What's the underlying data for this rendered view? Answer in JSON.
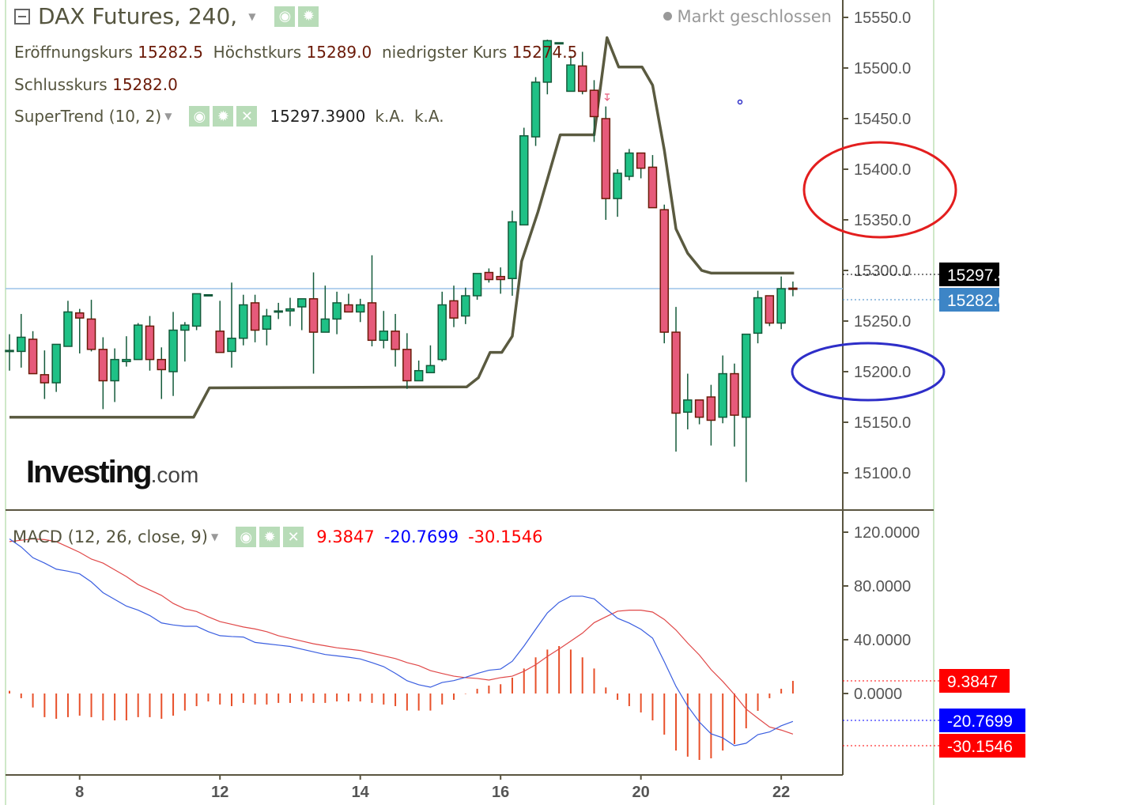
{
  "header": {
    "title": "DAX Futures, 240,",
    "status": "Markt geschlossen",
    "ohlc": {
      "open_label": "Eröffnungskurs",
      "open": "15282.5",
      "high_label": "Höchstkurs",
      "high": "15289.0",
      "low_label": "niedrigster Kurs",
      "low": "15274.5",
      "close_label": "Schlusskurs",
      "close": "15282.0"
    },
    "supertrend": {
      "label": "SuperTrend (10, 2)",
      "value": "15297.3900",
      "v2": "k.A.",
      "v3": "k.A."
    }
  },
  "macd_header": {
    "label": "MACD (12, 26, close, 9)",
    "hist": "9.3847",
    "macd": "-20.7699",
    "signal": "-30.1546"
  },
  "logo": "Investing.com",
  "icons": [
    "collapse-icon",
    "eye-icon",
    "gear-icon",
    "close-icon",
    "chevron-down-icon"
  ],
  "colors": {
    "up": "#1fc186",
    "down": "#e65a7a",
    "supertrend": "#5a5a40",
    "last_price_line": "#9cc3e8",
    "macd": "#3a5ee0",
    "signal": "#e04848",
    "histogram": "#e8502a",
    "annotation_red": "#e31e1e",
    "annotation_blue": "#2e2ec8"
  },
  "chart_data": [
    {
      "type": "candlestick",
      "ylim": [
        15080,
        15560
      ],
      "yticks": [
        "15550.0",
        "15500.0",
        "15450.0",
        "15400.0",
        "15350.0",
        "15300.0",
        "15250.0",
        "15200.0",
        "15150.0",
        "15100.0"
      ],
      "xticks": [
        {
          "label": "8",
          "index": 6
        },
        {
          "label": "12",
          "index": 18
        },
        {
          "label": "14",
          "index": 30
        },
        {
          "label": "16",
          "index": 42
        },
        {
          "label": "20",
          "index": 54
        },
        {
          "label": "22",
          "index": 66
        }
      ],
      "price_labels": {
        "supertrend": "15297.4",
        "last": "15282.0"
      },
      "last_price": 15282.0,
      "ohlc": [
        [
          15221,
          15237,
          15201,
          15221
        ],
        [
          15220,
          15257,
          15204,
          15234
        ],
        [
          15232,
          15240,
          15198,
          15198
        ],
        [
          15197,
          15221,
          15173,
          15189
        ],
        [
          15189,
          15227,
          15180,
          15227
        ],
        [
          15225,
          15270,
          15225,
          15259
        ],
        [
          15258,
          15262,
          15218,
          15253
        ],
        [
          15252,
          15271,
          15220,
          15222
        ],
        [
          15222,
          15234,
          15163,
          15191
        ],
        [
          15191,
          15223,
          15170,
          15212
        ],
        [
          15210,
          15235,
          15205,
          15212
        ],
        [
          15212,
          15248,
          15212,
          15246
        ],
        [
          15245,
          15255,
          15201,
          15212
        ],
        [
          15212,
          15224,
          15173,
          15202
        ],
        [
          15200,
          15259,
          15176,
          15241
        ],
        [
          15241,
          15249,
          15210,
          15246
        ],
        [
          15245,
          15277,
          15241,
          15277
        ],
        [
          15276,
          15276,
          15276,
          15276
        ],
        [
          15240,
          15270,
          15219,
          15219
        ],
        [
          15220,
          15288,
          15204,
          15233
        ],
        [
          15233,
          15276,
          15226,
          15266
        ],
        [
          15268,
          15276,
          15229,
          15241
        ],
        [
          15242,
          15262,
          15226,
          15255
        ],
        [
          15259,
          15268,
          15252,
          15260
        ],
        [
          15260,
          15273,
          15245,
          15262
        ],
        [
          15264,
          15272,
          15241,
          15272
        ],
        [
          15272,
          15298,
          15198,
          15239
        ],
        [
          15239,
          15285,
          15239,
          15252
        ],
        [
          15252,
          15279,
          15237,
          15268
        ],
        [
          15266,
          15277,
          15259,
          15259
        ],
        [
          15259,
          15272,
          15249,
          15266
        ],
        [
          15268,
          15315,
          15225,
          15231
        ],
        [
          15231,
          15260,
          15223,
          15240
        ],
        [
          15240,
          15257,
          15205,
          15222
        ],
        [
          15222,
          15238,
          15183,
          15191
        ],
        [
          15191,
          15211,
          15191,
          15201
        ],
        [
          15199,
          15226,
          15199,
          15206
        ],
        [
          15212,
          15279,
          15210,
          15266
        ],
        [
          15270,
          15285,
          15244,
          15253
        ],
        [
          15255,
          15283,
          15247,
          15275
        ],
        [
          15275,
          15297,
          15271,
          15297
        ],
        [
          15298,
          15302,
          15288,
          15291
        ],
        [
          15294,
          15303,
          15277,
          15291
        ],
        [
          15292,
          15359,
          15275,
          15348
        ],
        [
          15345,
          15441,
          15345,
          15433
        ],
        [
          15432,
          15491,
          15423,
          15486
        ],
        [
          15486,
          15528,
          15474,
          15527
        ],
        [
          15525,
          15525,
          15525,
          15525
        ],
        [
          15477,
          15512,
          15477,
          15503
        ],
        [
          15502,
          15516,
          15474,
          15477
        ],
        [
          15478,
          15488,
          15427,
          15452
        ],
        [
          15450,
          15462,
          15350,
          15371
        ],
        [
          15371,
          15400,
          15353,
          15396
        ],
        [
          15393,
          15420,
          15389,
          15416
        ],
        [
          15416,
          15416,
          15391,
          15401
        ],
        [
          15402,
          15414,
          15362,
          15362
        ],
        [
          15360,
          15365,
          15228,
          15239
        ],
        [
          15239,
          15264,
          15121,
          15159
        ],
        [
          15160,
          15198,
          15143,
          15172
        ],
        [
          15172,
          15172,
          15148,
          15155
        ],
        [
          15175,
          15187,
          15127,
          15152
        ],
        [
          15155,
          15216,
          15149,
          15198
        ],
        [
          15198,
          15208,
          15126,
          15157
        ],
        [
          15155,
          15237,
          15091,
          15237
        ],
        [
          15238,
          15280,
          15228,
          15273
        ],
        [
          15275,
          15275,
          15245,
          15248
        ],
        [
          15248,
          15294,
          15242,
          15282
        ],
        [
          15282.5,
          15289,
          15274.5,
          15282
        ]
      ],
      "supertrend": [
        [
          0,
          15155
        ],
        [
          15.75,
          15155
        ],
        [
          17.1,
          15184
        ],
        [
          28.3,
          15184.5
        ],
        [
          39.1,
          15185
        ],
        [
          40.1,
          15194
        ],
        [
          41.1,
          15219
        ],
        [
          42.1,
          15219
        ],
        [
          43,
          15235
        ],
        [
          43.8,
          15309
        ],
        [
          45.2,
          15358
        ],
        [
          47.1,
          15434
        ],
        [
          50,
          15434
        ],
        [
          51.1,
          15530
        ],
        [
          52.1,
          15501
        ],
        [
          54.1,
          15501
        ],
        [
          55,
          15483
        ],
        [
          56,
          15419
        ],
        [
          57,
          15341
        ],
        [
          58,
          15317
        ],
        [
          59.2,
          15300
        ],
        [
          60,
          15297.4
        ],
        [
          67.1,
          15297.4
        ]
      ],
      "annotations": [
        {
          "shape": "ellipse",
          "color": "red",
          "around": [
            15350,
            15400
          ]
        },
        {
          "shape": "ellipse",
          "color": "blue",
          "around": [
            15200,
            15200
          ]
        }
      ]
    },
    {
      "type": "macd",
      "ylim": [
        -60,
        135
      ],
      "yticks": [
        "120.0000",
        "80.0000",
        "40.0000",
        "0.0000"
      ],
      "ytick_values": [
        120,
        80,
        40,
        0
      ],
      "value_labels": {
        "hist": "9.3847",
        "macd": "-20.7699",
        "signal": "-30.1546"
      },
      "histogram": [
        2,
        -3.5,
        -10.4,
        -17.6,
        -18.8,
        -17.6,
        -16.5,
        -17.6,
        -20,
        -20,
        -20,
        -17.6,
        -17.6,
        -18.8,
        -16.5,
        -12.7,
        -9.4,
        -5.9,
        -8.2,
        -9.4,
        -7,
        -8.2,
        -8.2,
        -7,
        -7,
        -5.9,
        -7,
        -7,
        -5.9,
        -5.9,
        -5.9,
        -7,
        -8.2,
        -9.4,
        -12.7,
        -12.7,
        -12.7,
        -8.2,
        -4.7,
        0,
        3.5,
        5.9,
        6.9,
        11.8,
        18.6,
        26.9,
        32.7,
        35.3,
        32.7,
        26.9,
        18.6,
        4.5,
        -4.7,
        -9.4,
        -14.1,
        -20,
        -30.6,
        -42.4,
        -47,
        -49.4,
        -48.2,
        -42.4,
        -37.6,
        -25.9,
        -12.9,
        -3.5,
        3.5,
        9.3847
      ],
      "macd": [
        115,
        109,
        101,
        97,
        92.5,
        91,
        89,
        83,
        75,
        70,
        65,
        62,
        58,
        52.5,
        51,
        50,
        50,
        46,
        43,
        42.4,
        42,
        38,
        37,
        36,
        35,
        33,
        31,
        29,
        28,
        27,
        25.7,
        23,
        20,
        15,
        9.5,
        6.5,
        4.7,
        8.2,
        9.6,
        12,
        14.9,
        17.3,
        18.2,
        24,
        35.3,
        47.8,
        60,
        67.8,
        72.4,
        72.4,
        70.4,
        63,
        56,
        52.4,
        47.8,
        41.2,
        23.7,
        5.3,
        -9.4,
        -21.2,
        -30,
        -33,
        -38.8,
        -37,
        -30.6,
        -28.6,
        -24,
        -20.7699
      ],
      "signal": [
        113,
        114,
        115,
        114.5,
        113,
        109,
        105,
        100,
        97,
        92,
        87,
        81,
        77,
        73,
        67,
        63,
        61,
        57,
        53.5,
        51.5,
        49.5,
        48,
        46,
        43,
        41,
        39,
        37,
        35.5,
        34,
        33,
        32,
        30,
        28,
        26,
        23,
        20.8,
        17,
        14.9,
        12.9,
        11.8,
        11.2,
        10,
        11.8,
        12.9,
        16.5,
        21.4,
        27.6,
        33.1,
        39,
        44.9,
        52.7,
        57,
        61.2,
        62,
        62,
        60.6,
        55.1,
        47.2,
        37.5,
        28.6,
        17.8,
        9,
        -0.8,
        -11.6,
        -18.4,
        -24.9,
        -27.2,
        -30.1546
      ]
    }
  ]
}
